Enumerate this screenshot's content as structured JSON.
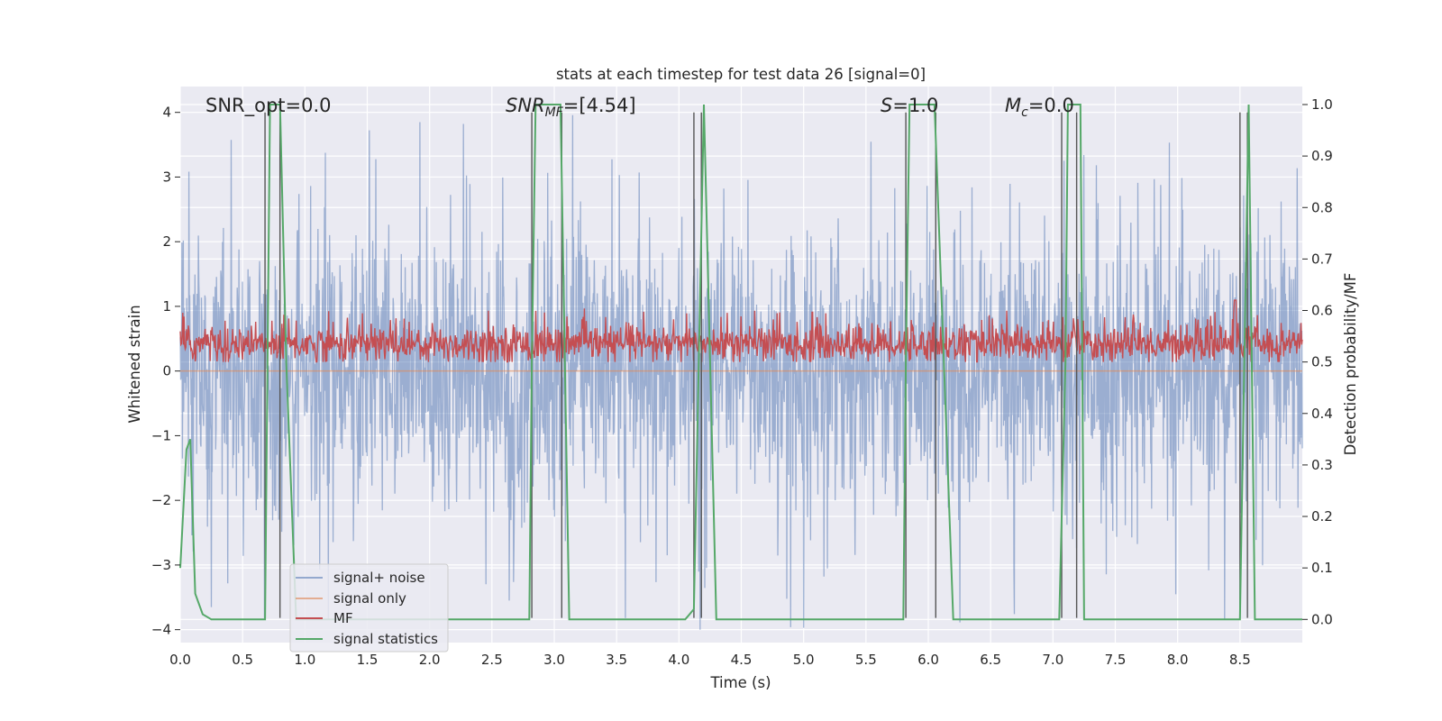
{
  "chart_data": {
    "type": "line",
    "title": "stats at each timestep for test data 26 [signal=0]",
    "xlabel": "Time (s)",
    "ylabel": "Whitened strain",
    "ylabel_right": "Detection probability/MF",
    "xlim": [
      0.0,
      9.0
    ],
    "ylim": [
      -4.2,
      4.4
    ],
    "ylim_right": [
      -0.045,
      1.035
    ],
    "x_ticks": [
      "0.0",
      "0.5",
      "1.0",
      "1.5",
      "2.0",
      "2.5",
      "3.0",
      "3.5",
      "4.0",
      "4.5",
      "5.0",
      "5.5",
      "6.0",
      "6.5",
      "7.0",
      "7.5",
      "8.0",
      "8.5"
    ],
    "y_ticks": [
      "4",
      "3",
      "2",
      "1",
      "0",
      "−1",
      "−2",
      "−3",
      "−4"
    ],
    "y_ticks_right": [
      "1.0",
      "0.9",
      "0.8",
      "0.7",
      "0.6",
      "0.5",
      "0.4",
      "0.3",
      "0.2",
      "0.1",
      "0.0"
    ],
    "grid": true,
    "legend_position": "lower-left",
    "annotations": {
      "snr_opt": "SNR_opt=0.0",
      "snr_mf_base": "SNR",
      "snr_mf_sub": "MF",
      "snr_mf_value": "=[4.54]",
      "s_base": "S",
      "s_value": "=1.0",
      "mc_base": "M",
      "mc_sub": "c",
      "mc_value": "=0.0"
    },
    "series": [
      {
        "name": "signal+ noise",
        "color": "#4c72b0",
        "axis": "left",
        "kind": "dense-noise",
        "typical_range": [
          -2.2,
          2.4
        ],
        "extreme_range": [
          -4.0,
          4.0
        ]
      },
      {
        "name": "signal only",
        "color": "#dd8452",
        "axis": "left",
        "kind": "line",
        "x": [
          0.0,
          9.0
        ],
        "y": [
          0.0,
          0.0
        ]
      },
      {
        "name": "MF",
        "color": "#c44e52",
        "axis": "right",
        "kind": "dense-noise",
        "typical_range": [
          0.5,
          0.57
        ],
        "extreme_range": [
          0.5,
          0.62
        ]
      },
      {
        "name": "signal statistics",
        "color": "#55a868",
        "axis": "right",
        "kind": "line",
        "x": [
          0.0,
          0.05,
          0.08,
          0.12,
          0.18,
          0.25,
          0.5,
          0.68,
          0.7,
          0.72,
          0.8,
          0.85,
          0.93,
          1.0,
          2.5,
          2.8,
          2.82,
          2.85,
          3.05,
          3.12,
          3.3,
          4.05,
          4.12,
          4.2,
          4.25,
          4.3,
          5.0,
          5.8,
          5.82,
          5.85,
          6.05,
          6.2,
          6.5,
          7.05,
          7.1,
          7.12,
          7.22,
          7.25,
          7.5,
          8.5,
          8.57,
          8.62,
          9.0
        ],
        "y": [
          0.1,
          0.33,
          0.35,
          0.05,
          0.01,
          0.0,
          0.0,
          0.0,
          0.5,
          1.0,
          1.0,
          0.5,
          0.0,
          0.0,
          0.0,
          0.0,
          0.5,
          1.0,
          1.0,
          0.0,
          0.0,
          0.0,
          0.02,
          1.0,
          0.5,
          0.0,
          0.0,
          0.0,
          0.5,
          1.0,
          1.0,
          0.0,
          0.0,
          0.0,
          0.5,
          1.0,
          1.0,
          0.0,
          0.0,
          0.0,
          1.0,
          0.0,
          0.0
        ]
      }
    ],
    "vertical_lines": {
      "color": "#555555",
      "x": [
        0.68,
        0.8,
        2.82,
        3.06,
        4.12,
        4.18,
        5.82,
        6.06,
        7.07,
        7.19,
        8.5,
        8.56
      ],
      "y_range": [
        -4.0,
        4.0
      ]
    },
    "colors": {
      "background": "#eaeaf2",
      "grid": "#ffffff",
      "text": "#262626"
    }
  }
}
